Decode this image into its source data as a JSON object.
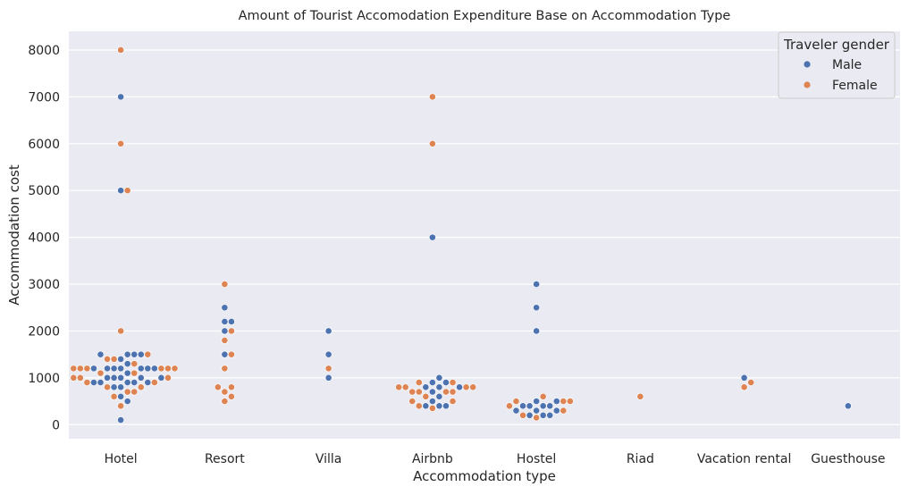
{
  "chart_data": {
    "type": "scatter",
    "subtype": "swarm",
    "title": "Amount of Tourist Accomodation Expenditure Base on Accommodation Type",
    "xlabel": "Accommodation type",
    "ylabel": "Accommodation cost",
    "categories": [
      "Hotel",
      "Resort",
      "Villa",
      "Airbnb",
      "Hostel",
      "Riad",
      "Vacation rental",
      "Guesthouse"
    ],
    "ylim": [
      -300,
      8400
    ],
    "yticks": [
      "0",
      "1000",
      "2000",
      "3000",
      "4000",
      "5000",
      "6000",
      "7000",
      "8000"
    ],
    "grid": true,
    "legend": {
      "title": "Traveler gender",
      "position": "top-right",
      "entries": [
        "Male",
        "Female"
      ]
    },
    "colors": {
      "Male": "#4c72b0",
      "Female": "#dd8452",
      "background": "#eaeaf2",
      "grid": "#ffffff"
    },
    "series": [
      {
        "name": "Male",
        "points": [
          [
            "Hotel",
            7000
          ],
          [
            "Hotel",
            5000
          ],
          [
            "Hotel",
            1500
          ],
          [
            "Hotel",
            1500
          ],
          [
            "Hotel",
            1500
          ],
          [
            "Hotel",
            1500
          ],
          [
            "Hotel",
            1400
          ],
          [
            "Hotel",
            1300
          ],
          [
            "Hotel",
            1200
          ],
          [
            "Hotel",
            1200
          ],
          [
            "Hotel",
            1200
          ],
          [
            "Hotel",
            1200
          ],
          [
            "Hotel",
            1200
          ],
          [
            "Hotel",
            1200
          ],
          [
            "Hotel",
            1200
          ],
          [
            "Hotel",
            1100
          ],
          [
            "Hotel",
            1000
          ],
          [
            "Hotel",
            1000
          ],
          [
            "Hotel",
            1000
          ],
          [
            "Hotel",
            1000
          ],
          [
            "Hotel",
            1000
          ],
          [
            "Hotel",
            900
          ],
          [
            "Hotel",
            900
          ],
          [
            "Hotel",
            900
          ],
          [
            "Hotel",
            900
          ],
          [
            "Hotel",
            900
          ],
          [
            "Hotel",
            800
          ],
          [
            "Hotel",
            800
          ],
          [
            "Hotel",
            600
          ],
          [
            "Hotel",
            500
          ],
          [
            "Hotel",
            100
          ],
          [
            "Resort",
            2500
          ],
          [
            "Resort",
            2200
          ],
          [
            "Resort",
            2200
          ],
          [
            "Resort",
            2000
          ],
          [
            "Resort",
            1500
          ],
          [
            "Villa",
            2000
          ],
          [
            "Villa",
            1500
          ],
          [
            "Villa",
            1000
          ],
          [
            "Airbnb",
            4000
          ],
          [
            "Airbnb",
            1000
          ],
          [
            "Airbnb",
            900
          ],
          [
            "Airbnb",
            900
          ],
          [
            "Airbnb",
            800
          ],
          [
            "Airbnb",
            800
          ],
          [
            "Airbnb",
            800
          ],
          [
            "Airbnb",
            700
          ],
          [
            "Airbnb",
            600
          ],
          [
            "Airbnb",
            500
          ],
          [
            "Airbnb",
            400
          ],
          [
            "Airbnb",
            400
          ],
          [
            "Airbnb",
            400
          ],
          [
            "Hostel",
            3000
          ],
          [
            "Hostel",
            2500
          ],
          [
            "Hostel",
            2000
          ],
          [
            "Hostel",
            500
          ],
          [
            "Hostel",
            500
          ],
          [
            "Hostel",
            400
          ],
          [
            "Hostel",
            400
          ],
          [
            "Hostel",
            400
          ],
          [
            "Hostel",
            400
          ],
          [
            "Hostel",
            300
          ],
          [
            "Hostel",
            300
          ],
          [
            "Hostel",
            300
          ],
          [
            "Hostel",
            200
          ],
          [
            "Hostel",
            200
          ],
          [
            "Hostel",
            200
          ],
          [
            "Vacation rental",
            1000
          ],
          [
            "Guesthouse",
            400
          ]
        ]
      },
      {
        "name": "Female",
        "points": [
          [
            "Hotel",
            8000
          ],
          [
            "Hotel",
            6000
          ],
          [
            "Hotel",
            5000
          ],
          [
            "Hotel",
            2000
          ],
          [
            "Hotel",
            1500
          ],
          [
            "Hotel",
            1400
          ],
          [
            "Hotel",
            1400
          ],
          [
            "Hotel",
            1300
          ],
          [
            "Hotel",
            1200
          ],
          [
            "Hotel",
            1200
          ],
          [
            "Hotel",
            1200
          ],
          [
            "Hotel",
            1200
          ],
          [
            "Hotel",
            1200
          ],
          [
            "Hotel",
            1200
          ],
          [
            "Hotel",
            1100
          ],
          [
            "Hotel",
            1100
          ],
          [
            "Hotel",
            1000
          ],
          [
            "Hotel",
            1000
          ],
          [
            "Hotel",
            1000
          ],
          [
            "Hotel",
            900
          ],
          [
            "Hotel",
            900
          ],
          [
            "Hotel",
            800
          ],
          [
            "Hotel",
            800
          ],
          [
            "Hotel",
            700
          ],
          [
            "Hotel",
            700
          ],
          [
            "Hotel",
            600
          ],
          [
            "Hotel",
            400
          ],
          [
            "Resort",
            3000
          ],
          [
            "Resort",
            2000
          ],
          [
            "Resort",
            1800
          ],
          [
            "Resort",
            1500
          ],
          [
            "Resort",
            1200
          ],
          [
            "Resort",
            800
          ],
          [
            "Resort",
            800
          ],
          [
            "Resort",
            700
          ],
          [
            "Resort",
            600
          ],
          [
            "Resort",
            500
          ],
          [
            "Villa",
            1200
          ],
          [
            "Airbnb",
            7000
          ],
          [
            "Airbnb",
            6000
          ],
          [
            "Airbnb",
            900
          ],
          [
            "Airbnb",
            900
          ],
          [
            "Airbnb",
            800
          ],
          [
            "Airbnb",
            800
          ],
          [
            "Airbnb",
            800
          ],
          [
            "Airbnb",
            800
          ],
          [
            "Airbnb",
            700
          ],
          [
            "Airbnb",
            700
          ],
          [
            "Airbnb",
            700
          ],
          [
            "Airbnb",
            700
          ],
          [
            "Airbnb",
            600
          ],
          [
            "Airbnb",
            500
          ],
          [
            "Airbnb",
            500
          ],
          [
            "Airbnb",
            400
          ],
          [
            "Airbnb",
            350
          ],
          [
            "Hostel",
            600
          ],
          [
            "Hostel",
            500
          ],
          [
            "Hostel",
            500
          ],
          [
            "Hostel",
            500
          ],
          [
            "Hostel",
            400
          ],
          [
            "Hostel",
            300
          ],
          [
            "Hostel",
            200
          ],
          [
            "Hostel",
            150
          ],
          [
            "Riad",
            600
          ],
          [
            "Vacation rental",
            900
          ],
          [
            "Vacation rental",
            800
          ]
        ]
      }
    ]
  }
}
